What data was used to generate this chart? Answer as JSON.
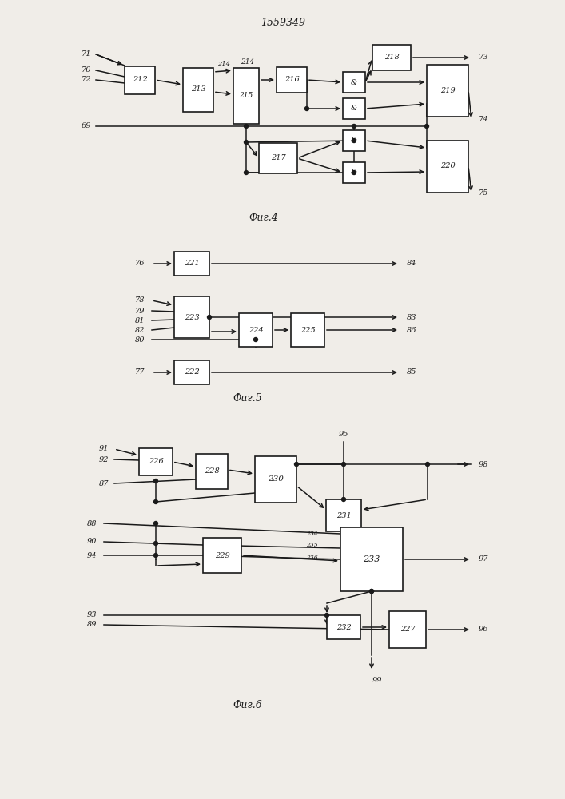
{
  "title": "1559349",
  "fig4_label": "Фиг.4",
  "fig5_label": "Фиг.5",
  "fig6_label": "Фиг.6",
  "bg_color": "#f0ede8",
  "line_color": "#1a1a1a",
  "box_color": "#ffffff",
  "box_edge": "#1a1a1a"
}
